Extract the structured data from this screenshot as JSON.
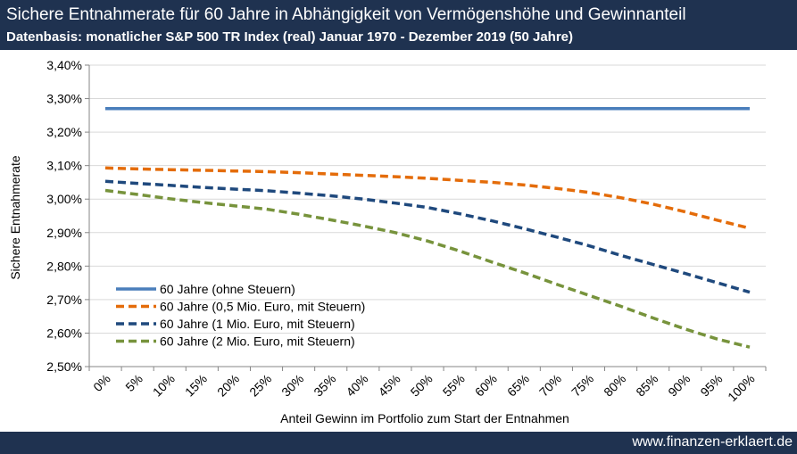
{
  "header": {
    "title": "Sichere Entnahmerate für 60 Jahre in Abhängigkeit von Vermögenshöhe und Gewinnanteil",
    "subtitle": "Datenbasis: monatlicher S&P 500 TR Index (real) Januar 1970 - Dezember 2019 (50 Jahre)"
  },
  "footer": {
    "text": "www.finanzen-erklaert.de"
  },
  "colors": {
    "header_bg": "#1f3250",
    "gridline": "#d9d9d9"
  },
  "chart_data": {
    "type": "line",
    "title": "",
    "xlabel": "Anteil Gewinn im Portfolio zum Start der Entnahmen",
    "ylabel": "Sichere Entnahmerate",
    "categories": [
      "0%",
      "5%",
      "10%",
      "15%",
      "20%",
      "25%",
      "30%",
      "35%",
      "40%",
      "45%",
      "50%",
      "55%",
      "60%",
      "65%",
      "70%",
      "75%",
      "80%",
      "85%",
      "90%",
      "95%",
      "100%"
    ],
    "ylim": [
      2.5,
      3.4
    ],
    "yticks": [
      2.5,
      2.6,
      2.7,
      2.8,
      2.9,
      3.0,
      3.1,
      3.2,
      3.3,
      3.4
    ],
    "ytick_labels": [
      "2,50%",
      "2,60%",
      "2,70%",
      "2,80%",
      "2,90%",
      "3,00%",
      "3,10%",
      "3,20%",
      "3,30%",
      "3,40%"
    ],
    "grid": true,
    "legend_position": "bottom-left",
    "series": [
      {
        "name": "60 Jahre (ohne Steuern)",
        "color": "#4a7ebb",
        "dash": false,
        "values": [
          3.27,
          3.27,
          3.27,
          3.27,
          3.27,
          3.27,
          3.27,
          3.27,
          3.27,
          3.27,
          3.27,
          3.27,
          3.27,
          3.27,
          3.27,
          3.27,
          3.27,
          3.27,
          3.27,
          3.27,
          3.27
        ]
      },
      {
        "name": "60 Jahre (0,5 Mio. Euro, mit Steuern)",
        "color": "#e46c0a",
        "dash": true,
        "values": [
          3.093,
          3.09,
          3.088,
          3.086,
          3.084,
          3.082,
          3.079,
          3.075,
          3.071,
          3.067,
          3.062,
          3.056,
          3.05,
          3.042,
          3.032,
          3.02,
          3.004,
          2.985,
          2.962,
          2.937,
          2.913
        ]
      },
      {
        "name": "60 Jahre (1 Mio. Euro, mit Steuern)",
        "color": "#1f497d",
        "dash": true,
        "values": [
          3.053,
          3.047,
          3.041,
          3.035,
          3.03,
          3.025,
          3.018,
          3.01,
          3.0,
          2.988,
          2.975,
          2.956,
          2.935,
          2.912,
          2.887,
          2.861,
          2.832,
          2.805,
          2.778,
          2.75,
          2.722
        ]
      },
      {
        "name": "60 Jahre (2 Mio. Euro, mit Steuern)",
        "color": "#77933c",
        "dash": true,
        "values": [
          3.026,
          3.014,
          3.001,
          2.99,
          2.98,
          2.97,
          2.955,
          2.938,
          2.92,
          2.9,
          2.875,
          2.845,
          2.812,
          2.78,
          2.746,
          2.713,
          2.68,
          2.645,
          2.612,
          2.582,
          2.558
        ]
      }
    ]
  }
}
